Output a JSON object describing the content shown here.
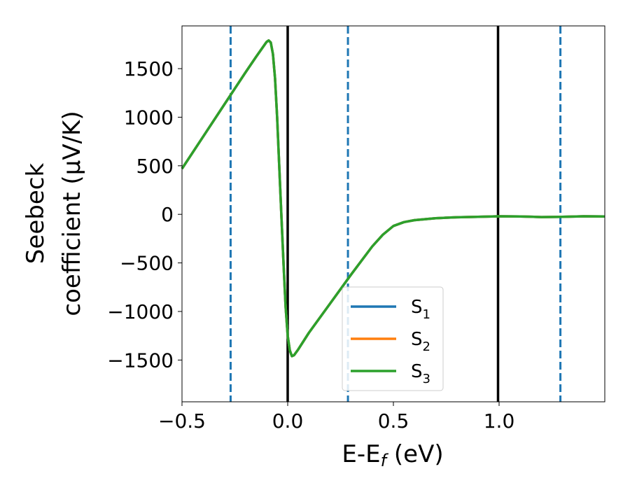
{
  "chart_data": {
    "type": "line",
    "title": "",
    "xlabel": "E-E_f (eV)",
    "ylabel_line1": "Seebeck",
    "ylabel_line2": "coefficient  (μV/K)",
    "xlim": [
      -0.5,
      1.5
    ],
    "ylim": [
      -1930,
      1940
    ],
    "x_ticks": [
      -0.5,
      0.0,
      0.5,
      1.0
    ],
    "x_tick_labels": [
      "−0.5",
      "0.0",
      "0.5",
      "1.0"
    ],
    "y_ticks": [
      1500,
      1000,
      500,
      0,
      -500,
      -1000,
      -1500
    ],
    "y_tick_labels": [
      "1500",
      "1000",
      "500",
      "0",
      "−500",
      "−1000",
      "−1500"
    ],
    "grid": false,
    "legend_position": "bottom-center",
    "vertical_lines": [
      {
        "x": -0.27,
        "style": "dashed",
        "color": "#1f77b4"
      },
      {
        "x": 0.0,
        "style": "solid",
        "color": "#000000"
      },
      {
        "x": 0.285,
        "style": "dashed",
        "color": "#1f77b4"
      },
      {
        "x": 0.995,
        "style": "solid",
        "color": "#000000"
      },
      {
        "x": 1.29,
        "style": "dashed",
        "color": "#1f77b4"
      }
    ],
    "x": [
      -0.5,
      -0.4,
      -0.3,
      -0.2,
      -0.15,
      -0.1,
      -0.09,
      -0.08,
      -0.07,
      -0.06,
      -0.05,
      -0.04,
      -0.03,
      -0.02,
      -0.01,
      0.0,
      0.01,
      0.02,
      0.03,
      0.05,
      0.1,
      0.2,
      0.3,
      0.4,
      0.45,
      0.5,
      0.55,
      0.6,
      0.7,
      0.8,
      0.9,
      1.0,
      1.1,
      1.2,
      1.3,
      1.4,
      1.5
    ],
    "series": [
      {
        "name": "S_1",
        "subscript": "1",
        "color": "#1f77b4",
        "values": [
          470,
          800,
          1130,
          1460,
          1620,
          1775,
          1790,
          1770,
          1650,
          1400,
          1000,
          500,
          0,
          -500,
          -950,
          -1250,
          -1400,
          -1460,
          -1450,
          -1390,
          -1220,
          -920,
          -620,
          -330,
          -210,
          -120,
          -80,
          -60,
          -40,
          -30,
          -25,
          -20,
          -22,
          -28,
          -25,
          -20,
          -22
        ]
      },
      {
        "name": "S_2",
        "subscript": "2",
        "color": "#ff7f0e",
        "values": [
          470,
          800,
          1130,
          1460,
          1620,
          1775,
          1790,
          1770,
          1650,
          1400,
          1000,
          500,
          0,
          -500,
          -950,
          -1250,
          -1400,
          -1460,
          -1450,
          -1390,
          -1220,
          -920,
          -620,
          -330,
          -210,
          -120,
          -80,
          -60,
          -40,
          -30,
          -25,
          -20,
          -22,
          -28,
          -25,
          -20,
          -22
        ]
      },
      {
        "name": "S_3",
        "subscript": "3",
        "color": "#2ca02c",
        "values": [
          470,
          800,
          1130,
          1460,
          1620,
          1775,
          1790,
          1770,
          1650,
          1400,
          1000,
          500,
          0,
          -500,
          -950,
          -1250,
          -1400,
          -1460,
          -1450,
          -1390,
          -1220,
          -920,
          -620,
          -330,
          -210,
          -120,
          -80,
          -60,
          -40,
          -30,
          -25,
          -20,
          -22,
          -28,
          -25,
          -20,
          -22
        ]
      }
    ]
  }
}
